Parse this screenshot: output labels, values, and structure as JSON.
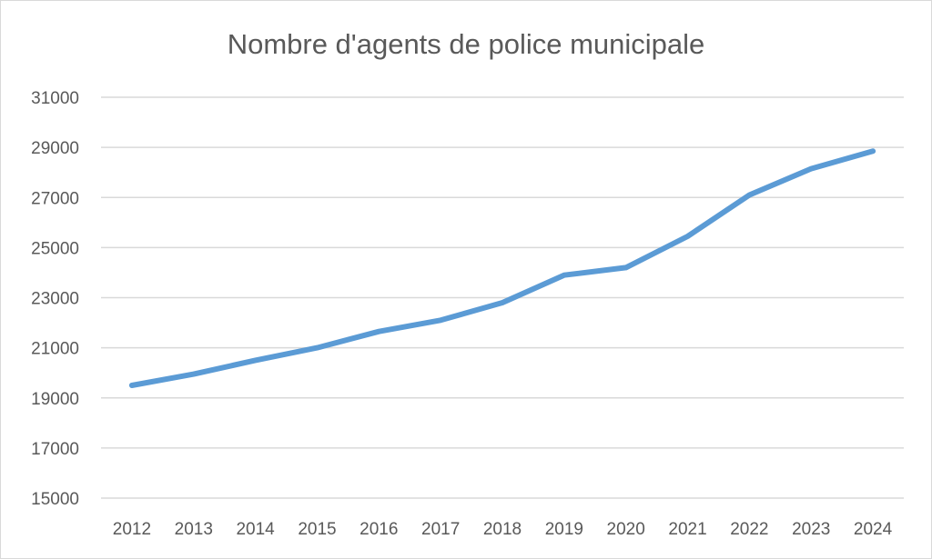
{
  "chart_data": {
    "type": "line",
    "title": "Nombre d'agents de police municipale",
    "xlabel": "",
    "ylabel": "",
    "categories": [
      "2012",
      "2013",
      "2014",
      "2015",
      "2016",
      "2017",
      "2018",
      "2019",
      "2020",
      "2021",
      "2022",
      "2023",
      "2024"
    ],
    "series": [
      {
        "name": "Nombre d'agents de police municipale",
        "color": "#5b9bd5",
        "values": [
          19500,
          19950,
          20500,
          21000,
          21650,
          22100,
          22800,
          23900,
          24200,
          25450,
          27100,
          28150,
          28850
        ]
      }
    ],
    "ylim": [
      15000,
      31000
    ],
    "yticks": [
      "15000",
      "17000",
      "19000",
      "21000",
      "23000",
      "25000",
      "27000",
      "29000",
      "31000"
    ],
    "grid": true,
    "legend": "none"
  }
}
